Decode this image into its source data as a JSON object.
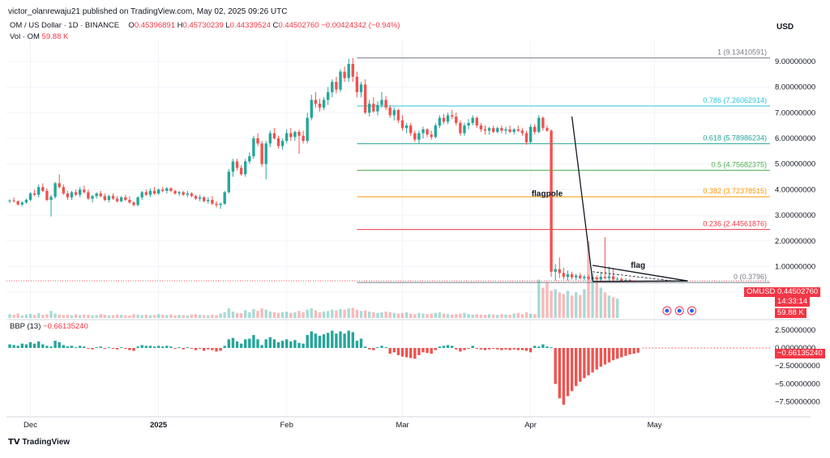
{
  "header": {
    "publish_line": "victor_olanrewaju21 published on TradingView.com, May 02, 2025 09:26 UTC",
    "currency": "USD"
  },
  "legend": {
    "symbol": "OM / US Dollar · 1D · BINANCE",
    "o_label": "O",
    "o_value": "0.45396891",
    "h_label": "H",
    "h_value": "0.45730239",
    "l_label": "L",
    "l_value": "0.44339524",
    "c_label": "C",
    "c_value": "0.44502760",
    "change": "−0.00424342 (−0.94%)",
    "vol_label": "Vol · OM",
    "vol_value": "59.88 K",
    "bbp_label": "BBP (13)",
    "bbp_value": "−0.66135240"
  },
  "badges": {
    "symbol": "OMUSD",
    "price": "0.44502760",
    "countdown": "14:33:14",
    "volume": "59.88 K",
    "bbp": "−0.66135240"
  },
  "footer": {
    "brand": "TradingView"
  },
  "colors": {
    "up": "#26a69a",
    "down": "#ef5350",
    "text": "#131722",
    "grid": "#f0f3fa"
  },
  "chart_data": {
    "type": "candlestick",
    "price_axis": {
      "range": [
        -0.5,
        9.5
      ],
      "ticks": [
        0,
        1,
        2,
        3,
        4,
        5,
        6,
        7,
        8,
        9
      ],
      "tick_labels": [
        "0.00000000",
        "1.00000000",
        "2.00000000",
        "3.00000000",
        "4.00000000",
        "5.00000000",
        "6.00000000",
        "7.00000000",
        "8.00000000",
        "9.00000000"
      ]
    },
    "bbp_axis": {
      "range": [
        -9,
        3.6
      ],
      "ticks": [
        2.5,
        0,
        -2.5,
        -5,
        -7.5
      ],
      "tick_labels": [
        "2.50000000",
        "0.00000000",
        "−2.50000000",
        "−5.00000000",
        "−7.50000000"
      ]
    },
    "time_axis": {
      "labels": [
        {
          "text": "Dec",
          "index": 5,
          "bold": false
        },
        {
          "text": "2025",
          "index": 36,
          "bold": true
        },
        {
          "text": "Feb",
          "index": 67,
          "bold": false
        },
        {
          "text": "Mar",
          "index": 95,
          "bold": false
        },
        {
          "text": "Apr",
          "index": 126,
          "bold": false
        },
        {
          "text": "May",
          "index": 156,
          "bold": false
        }
      ]
    },
    "fib_levels": [
      {
        "ratio": "1",
        "value": 9.13410591,
        "label": "1 (9.13410591)",
        "color": "#787b86"
      },
      {
        "ratio": "0.786",
        "value": 7.26062914,
        "label": "0.786 (7.26062914)",
        "color": "#26c6da"
      },
      {
        "ratio": "0.618",
        "value": 5.78986234,
        "label": "0.618 (5.78986234)",
        "color": "#26a69a"
      },
      {
        "ratio": "0.5",
        "value": 4.75682375,
        "label": "0.5 (4.75682375)",
        "color": "#4caf50"
      },
      {
        "ratio": "0.382",
        "value": 3.72378515,
        "label": "0.382 (3.72378515)",
        "color": "#ff9800"
      },
      {
        "ratio": "0.236",
        "value": 2.44561876,
        "label": "0.236 (2.44561876)",
        "color": "#f23645"
      },
      {
        "ratio": "0",
        "value": 0.3796,
        "label": "0 (0.3796)",
        "color": "#787b86"
      }
    ],
    "annotations": [
      {
        "text": "flagpole",
        "index": 130,
        "price": 3.75
      },
      {
        "text": "flag",
        "index": 152,
        "price": 0.95
      }
    ],
    "flagpole": {
      "from": {
        "index": 136,
        "price": 6.85
      },
      "to": {
        "index": 141,
        "price": 0.45
      }
    },
    "flag_lines": [
      {
        "from": {
          "index": 141,
          "price": 1.05
        },
        "to": {
          "index": 164,
          "price": 0.44
        }
      },
      {
        "from": {
          "index": 141,
          "price": 0.42
        },
        "to": {
          "index": 164,
          "price": 0.44
        }
      }
    ],
    "current_price": 0.4450276,
    "candles": [
      [
        3.55,
        3.62,
        3.48,
        3.58
      ],
      [
        3.58,
        3.7,
        3.5,
        3.55
      ],
      [
        3.55,
        3.58,
        3.38,
        3.42
      ],
      [
        3.42,
        3.55,
        3.35,
        3.5
      ],
      [
        3.5,
        3.65,
        3.45,
        3.6
      ],
      [
        3.6,
        3.9,
        3.55,
        3.85
      ],
      [
        3.85,
        4.0,
        3.75,
        3.8
      ],
      [
        3.8,
        4.2,
        3.7,
        4.1
      ],
      [
        4.1,
        4.25,
        3.9,
        3.95
      ],
      [
        3.95,
        4.05,
        3.55,
        3.6
      ],
      [
        3.6,
        3.8,
        2.95,
        3.72
      ],
      [
        3.72,
        4.3,
        3.65,
        4.25
      ],
      [
        4.25,
        4.6,
        4.05,
        4.1
      ],
      [
        4.1,
        4.2,
        3.8,
        3.85
      ],
      [
        3.85,
        3.95,
        3.6,
        3.7
      ],
      [
        3.7,
        3.95,
        3.6,
        3.9
      ],
      [
        3.9,
        4.0,
        3.75,
        3.8
      ],
      [
        3.8,
        4.1,
        3.7,
        4.0
      ],
      [
        4.0,
        4.15,
        3.85,
        3.9
      ],
      [
        3.9,
        4.0,
        3.6,
        3.65
      ],
      [
        3.65,
        3.8,
        3.5,
        3.75
      ],
      [
        3.75,
        3.9,
        3.65,
        3.85
      ],
      [
        3.85,
        3.95,
        3.7,
        3.75
      ],
      [
        3.75,
        3.85,
        3.55,
        3.6
      ],
      [
        3.6,
        3.8,
        3.5,
        3.75
      ],
      [
        3.75,
        3.85,
        3.6,
        3.65
      ],
      [
        3.65,
        3.75,
        3.5,
        3.55
      ],
      [
        3.55,
        3.75,
        3.5,
        3.7
      ],
      [
        3.7,
        3.8,
        3.55,
        3.6
      ],
      [
        3.6,
        3.75,
        3.45,
        3.5
      ],
      [
        3.5,
        3.55,
        3.35,
        3.4
      ],
      [
        3.4,
        3.75,
        3.35,
        3.7
      ],
      [
        3.7,
        3.95,
        3.6,
        3.9
      ],
      [
        3.9,
        4.0,
        3.75,
        3.8
      ],
      [
        3.8,
        4.05,
        3.7,
        3.95
      ],
      [
        3.95,
        4.1,
        3.8,
        3.85
      ],
      [
        3.85,
        4.05,
        3.8,
        4.0
      ],
      [
        4.0,
        4.1,
        3.9,
        3.95
      ],
      [
        3.95,
        4.1,
        3.85,
        4.05
      ],
      [
        4.05,
        4.1,
        3.9,
        3.95
      ],
      [
        3.95,
        4.0,
        3.8,
        3.85
      ],
      [
        3.85,
        3.95,
        3.75,
        3.9
      ],
      [
        3.9,
        3.95,
        3.75,
        3.8
      ],
      [
        3.8,
        3.95,
        3.7,
        3.85
      ],
      [
        3.85,
        3.9,
        3.7,
        3.75
      ],
      [
        3.75,
        3.8,
        3.6,
        3.65
      ],
      [
        3.65,
        3.8,
        3.55,
        3.7
      ],
      [
        3.7,
        3.75,
        3.5,
        3.55
      ],
      [
        3.55,
        3.7,
        3.45,
        3.6
      ],
      [
        3.6,
        3.75,
        3.4,
        3.45
      ],
      [
        3.45,
        3.55,
        3.3,
        3.4
      ],
      [
        3.4,
        3.5,
        3.25,
        3.45
      ],
      [
        3.45,
        3.95,
        3.4,
        3.9
      ],
      [
        3.9,
        4.8,
        3.85,
        4.7
      ],
      [
        4.7,
        5.2,
        4.5,
        5.1
      ],
      [
        5.1,
        5.2,
        4.75,
        4.85
      ],
      [
        4.85,
        4.95,
        4.55,
        4.6
      ],
      [
        4.6,
        5.2,
        4.5,
        5.1
      ],
      [
        5.1,
        5.45,
        5.0,
        5.3
      ],
      [
        5.3,
        6.1,
        5.2,
        6.0
      ],
      [
        6.0,
        6.2,
        5.7,
        5.8
      ],
      [
        5.8,
        5.9,
        4.9,
        5.0
      ],
      [
        5.0,
        5.9,
        4.4,
        5.8
      ],
      [
        5.8,
        6.3,
        5.65,
        6.2
      ],
      [
        6.2,
        6.4,
        5.95,
        6.0
      ],
      [
        6.0,
        6.1,
        5.6,
        5.7
      ],
      [
        5.7,
        6.0,
        5.55,
        5.9
      ],
      [
        5.9,
        6.35,
        5.8,
        6.2
      ],
      [
        6.2,
        6.4,
        5.9,
        6.05
      ],
      [
        6.05,
        6.3,
        5.9,
        6.25
      ],
      [
        6.25,
        6.35,
        5.4,
        6.1
      ],
      [
        6.1,
        6.3,
        5.8,
        5.9
      ],
      [
        5.9,
        7.0,
        5.8,
        6.8
      ],
      [
        6.8,
        7.7,
        6.7,
        7.5
      ],
      [
        7.5,
        7.8,
        7.2,
        7.35
      ],
      [
        7.35,
        7.55,
        7.05,
        7.2
      ],
      [
        7.2,
        7.6,
        7.1,
        7.5
      ],
      [
        7.5,
        8.0,
        7.3,
        7.8
      ],
      [
        7.8,
        8.3,
        7.6,
        8.2
      ],
      [
        8.2,
        8.4,
        7.75,
        7.9
      ],
      [
        7.9,
        8.7,
        7.8,
        8.6
      ],
      [
        8.6,
        8.8,
        8.2,
        8.35
      ],
      [
        8.35,
        9.1,
        8.2,
        8.9
      ],
      [
        8.9,
        9.13,
        8.2,
        8.4
      ],
      [
        8.4,
        8.6,
        7.6,
        7.8
      ],
      [
        7.8,
        8.2,
        7.6,
        8.1
      ],
      [
        8.1,
        8.3,
        6.95,
        7.0
      ],
      [
        7.0,
        7.5,
        6.85,
        7.35
      ],
      [
        7.35,
        7.6,
        7.0,
        7.05
      ],
      [
        7.05,
        7.45,
        6.9,
        7.3
      ],
      [
        7.3,
        7.8,
        7.2,
        7.5
      ],
      [
        7.5,
        7.65,
        7.1,
        7.2
      ],
      [
        7.2,
        7.3,
        6.8,
        6.9
      ],
      [
        6.9,
        7.2,
        6.7,
        7.1
      ],
      [
        7.1,
        7.15,
        6.6,
        6.7
      ],
      [
        6.7,
        6.9,
        6.3,
        6.4
      ],
      [
        6.4,
        6.6,
        6.2,
        6.5
      ],
      [
        6.5,
        6.6,
        6.1,
        6.2
      ],
      [
        6.2,
        6.3,
        5.85,
        5.95
      ],
      [
        5.95,
        6.3,
        5.8,
        6.2
      ],
      [
        6.2,
        6.45,
        6.0,
        6.35
      ],
      [
        6.35,
        6.4,
        6.05,
        6.15
      ],
      [
        6.15,
        6.3,
        5.95,
        6.05
      ],
      [
        6.05,
        6.6,
        6.0,
        6.5
      ],
      [
        6.5,
        6.9,
        6.4,
        6.8
      ],
      [
        6.8,
        6.95,
        6.55,
        6.65
      ],
      [
        6.65,
        7.0,
        6.55,
        6.9
      ],
      [
        6.9,
        7.1,
        6.75,
        6.85
      ],
      [
        6.85,
        7.0,
        6.5,
        6.6
      ],
      [
        6.6,
        6.7,
        6.1,
        6.2
      ],
      [
        6.2,
        6.6,
        6.1,
        6.5
      ],
      [
        6.5,
        6.75,
        6.35,
        6.6
      ],
      [
        6.6,
        6.9,
        6.5,
        6.8
      ],
      [
        6.8,
        6.85,
        6.4,
        6.5
      ],
      [
        6.5,
        6.6,
        6.25,
        6.35
      ],
      [
        6.35,
        6.5,
        6.15,
        6.3
      ],
      [
        6.3,
        6.45,
        6.15,
        6.4
      ],
      [
        6.4,
        6.5,
        6.2,
        6.25
      ],
      [
        6.25,
        6.45,
        6.2,
        6.4
      ],
      [
        6.4,
        6.5,
        6.2,
        6.3
      ],
      [
        6.3,
        6.45,
        6.15,
        6.35
      ],
      [
        6.35,
        6.5,
        6.2,
        6.25
      ],
      [
        6.25,
        6.4,
        6.15,
        6.35
      ],
      [
        6.35,
        6.5,
        6.25,
        6.3
      ],
      [
        6.3,
        6.4,
        6.1,
        6.2
      ],
      [
        6.2,
        6.3,
        5.75,
        5.85
      ],
      [
        5.85,
        6.55,
        5.8,
        6.45
      ],
      [
        6.45,
        6.55,
        6.15,
        6.25
      ],
      [
        6.25,
        6.9,
        6.2,
        6.8
      ],
      [
        6.8,
        6.85,
        6.3,
        6.4
      ],
      [
        6.4,
        6.5,
        6.25,
        6.3
      ],
      [
        6.3,
        6.35,
        0.6,
        0.8
      ],
      [
        0.8,
        1.1,
        0.45,
        0.9
      ],
      [
        0.9,
        1.35,
        0.55,
        0.75
      ],
      [
        0.75,
        0.95,
        0.5,
        0.6
      ],
      [
        0.6,
        0.85,
        0.45,
        0.7
      ],
      [
        0.7,
        0.8,
        0.5,
        0.58
      ],
      [
        0.58,
        0.72,
        0.48,
        0.65
      ],
      [
        0.65,
        0.75,
        0.5,
        0.55
      ],
      [
        0.55,
        0.68,
        0.45,
        0.6
      ],
      [
        0.6,
        0.68,
        0.48,
        0.52
      ],
      [
        0.52,
        0.62,
        0.42,
        0.58
      ],
      [
        0.58,
        0.66,
        0.46,
        0.5
      ],
      [
        0.5,
        0.8,
        0.45,
        0.6
      ],
      [
        0.6,
        2.15,
        0.5,
        0.55
      ],
      [
        0.55,
        1.0,
        0.45,
        0.62
      ],
      [
        0.62,
        0.95,
        0.45,
        0.5
      ],
      [
        0.5,
        0.6,
        0.42,
        0.52
      ],
      [
        0.52,
        0.58,
        0.4,
        0.45
      ],
      [
        0.45,
        0.55,
        0.41,
        0.48
      ],
      [
        0.48,
        0.52,
        0.42,
        0.46
      ],
      [
        0.454,
        0.457,
        0.443,
        0.445
      ]
    ],
    "volume": [
      12,
      10,
      14,
      8,
      11,
      13,
      9,
      15,
      10,
      12,
      22,
      14,
      11,
      9,
      10,
      8,
      12,
      9,
      11,
      10,
      8,
      9,
      12,
      10,
      8,
      9,
      11,
      10,
      9,
      8,
      12,
      11,
      9,
      10,
      8,
      9,
      12,
      10,
      9,
      11,
      8,
      10,
      9,
      8,
      11,
      12,
      10,
      9,
      8,
      10,
      9,
      14,
      18,
      30,
      20,
      16,
      15,
      24,
      18,
      28,
      22,
      30,
      26,
      20,
      18,
      16,
      18,
      20,
      16,
      18,
      22,
      18,
      26,
      30,
      24,
      18,
      20,
      22,
      26,
      24,
      28,
      26,
      30,
      32,
      26,
      22,
      24,
      20,
      18,
      16,
      18,
      20,
      18,
      16,
      14,
      16,
      18,
      14,
      12,
      16,
      14,
      12,
      14,
      16,
      18,
      14,
      12,
      10,
      12,
      14,
      16,
      12,
      10,
      12,
      11,
      10,
      12,
      11,
      10,
      12,
      11,
      10,
      14,
      16,
      12,
      18,
      14,
      12,
      120,
      95,
      110,
      85,
      90,
      80,
      75,
      85,
      70,
      80,
      72,
      90,
      240,
      140,
      115,
      95,
      80,
      70,
      65,
      60
    ],
    "bbp": [
      0.5,
      0.4,
      0.3,
      0.6,
      0.5,
      0.8,
      0.6,
      0.9,
      0.5,
      0.3,
      0.2,
      1.0,
      0.8,
      0.4,
      0.2,
      0.3,
      0.1,
      0.3,
      0.2,
      -0.1,
      -0.2,
      0.1,
      0.2,
      -0.1,
      0.1,
      -0.1,
      -0.2,
      0.1,
      -0.1,
      -0.3,
      -0.4,
      0.2,
      0.4,
      0.3,
      0.3,
      0.2,
      0.3,
      0.2,
      0.3,
      0.2,
      -0.1,
      0.1,
      -0.2,
      0.1,
      -0.1,
      -0.3,
      -0.1,
      -0.4,
      -0.2,
      -0.3,
      -0.5,
      -0.4,
      0.3,
      1.2,
      1.4,
      0.9,
      0.6,
      1.2,
      1.3,
      1.8,
      1.2,
      0.4,
      1.2,
      1.5,
      1.2,
      0.8,
      1.0,
      1.2,
      0.9,
      1.1,
      0.7,
      0.6,
      1.8,
      2.3,
      2.0,
      1.7,
      1.9,
      2.1,
      2.4,
      2.0,
      2.3,
      2.0,
      2.4,
      2.2,
      1.0,
      1.3,
      0.2,
      -0.2,
      -0.3,
      0.1,
      0.3,
      0.1,
      -0.8,
      -0.6,
      -1.0,
      -1.2,
      -1.3,
      -1.4,
      -1.5,
      -1.0,
      -0.6,
      -0.7,
      -0.8,
      -0.3,
      0.2,
      0.3,
      0.4,
      0.3,
      -0.2,
      -0.5,
      -0.3,
      -0.1,
      0.3,
      -0.1,
      -0.2,
      -0.3,
      -0.2,
      -0.1,
      -0.2,
      -0.3,
      -0.2,
      -0.3,
      -0.2,
      -0.3,
      -0.3,
      -0.4,
      -0.6,
      0.3,
      0.2,
      0.5,
      0.2,
      0.1,
      -5.0,
      -7.0,
      -7.9,
      -6.7,
      -6.0,
      -5.3,
      -4.7,
      -4.2,
      -3.8,
      -3.4,
      -3.0,
      -2.6,
      -2.3,
      -2.0,
      -1.7,
      -1.5,
      -1.3,
      -1.1,
      -0.9,
      -0.8,
      -0.66
    ]
  }
}
